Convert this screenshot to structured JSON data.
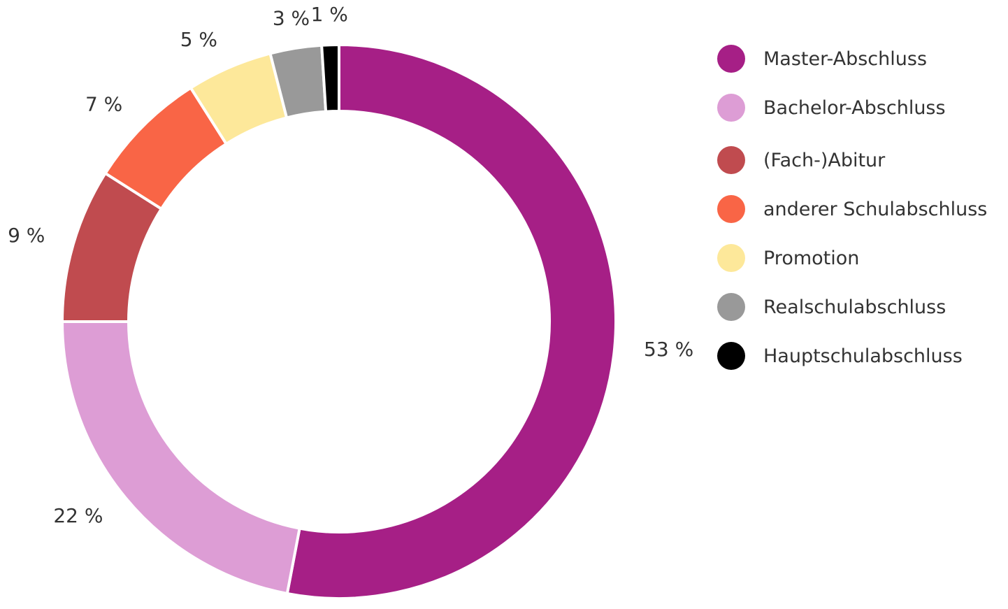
{
  "chart_data": {
    "type": "pie",
    "variant": "donut",
    "legend_position": "right",
    "slices": [
      {
        "name": "Master-Abschluss",
        "value": 53,
        "label": "53 %",
        "color": "#a61f86"
      },
      {
        "name": "Bachelor-Abschluss",
        "value": 22,
        "label": "22 %",
        "color": "#dd9dd5"
      },
      {
        "name": "(Fach-)Abitur",
        "value": 9,
        "label": "9 %",
        "color": "#c04b4f"
      },
      {
        "name": "anderer Schulabschluss",
        "value": 7,
        "label": "7 %",
        "color": "#f96546"
      },
      {
        "name": "Promotion",
        "value": 5,
        "label": "5 %",
        "color": "#fde89a"
      },
      {
        "name": "Realschulabschluss",
        "value": 3,
        "label": "3 %",
        "color": "#999999"
      },
      {
        "name": "Hauptschulabschluss",
        "value": 1,
        "label": "1 %",
        "color": "#000000"
      }
    ]
  }
}
